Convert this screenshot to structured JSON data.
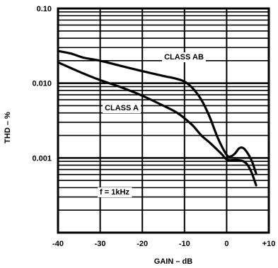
{
  "chart_data": {
    "type": "line",
    "xlabel": "GAIN – dB",
    "ylabel": "THD – %",
    "x_ticks": [
      -40,
      -30,
      -20,
      -10,
      0,
      10
    ],
    "x_tick_labels": [
      "-40",
      "-30",
      "-20",
      "-10",
      "0",
      "+10"
    ],
    "y_ticks": [
      0.1,
      0.01,
      0.001
    ],
    "y_tick_labels": [
      "0.10",
      "0.010",
      "0.001"
    ],
    "xlim": [
      -40,
      10
    ],
    "ylim": [
      0.0001,
      0.1
    ],
    "y_scale": "log",
    "grid": true,
    "annotations": {
      "class_ab": "CLASS AB",
      "class_a": "CLASS A",
      "frequency": "f = 1kHz"
    },
    "series": [
      {
        "name": "CLASS AB",
        "x": [
          -40,
          -37,
          -34,
          -30,
          -25,
          -20,
          -15,
          -12,
          -10,
          -8,
          -6,
          -4,
          -2,
          0,
          1,
          2,
          3,
          4,
          5,
          6,
          7
        ],
        "y": [
          0.027,
          0.025,
          0.022,
          0.02,
          0.017,
          0.0145,
          0.0125,
          0.0115,
          0.0105,
          0.0085,
          0.006,
          0.0035,
          0.0018,
          0.0011,
          0.00105,
          0.00115,
          0.00135,
          0.00135,
          0.00115,
          0.0009,
          0.00062
        ]
      },
      {
        "name": "CLASS A",
        "x": [
          -40,
          -37,
          -34,
          -30,
          -25,
          -20,
          -15,
          -12,
          -10,
          -8,
          -6,
          -4,
          -2,
          -1,
          0,
          1,
          2,
          3,
          4,
          5,
          6,
          7
        ],
        "y": [
          0.019,
          0.016,
          0.0135,
          0.011,
          0.0088,
          0.0068,
          0.005,
          0.0041,
          0.0034,
          0.0027,
          0.002,
          0.0016,
          0.00125,
          0.0011,
          0.00095,
          0.00093,
          0.00094,
          0.00093,
          0.0009,
          0.0008,
          0.00062,
          0.00043
        ]
      }
    ]
  }
}
